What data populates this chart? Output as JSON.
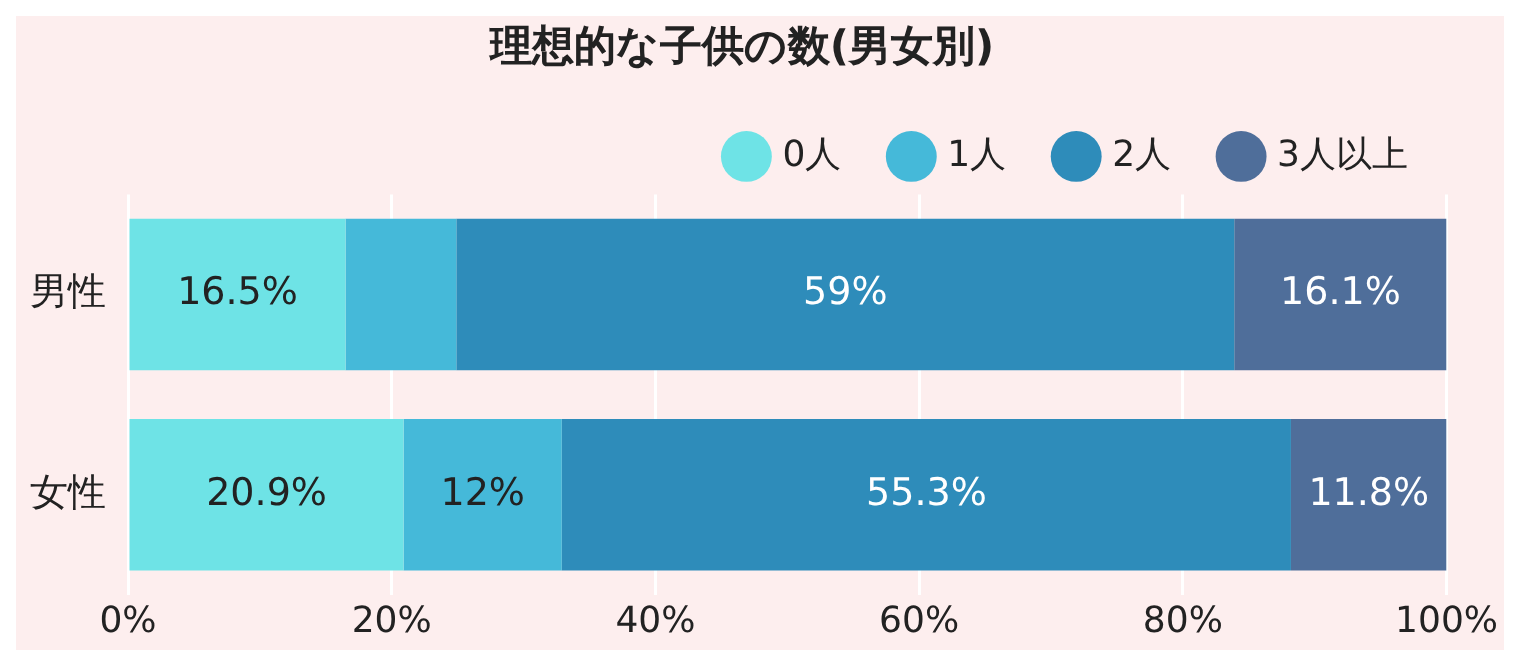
{
  "chart_data": {
    "type": "bar",
    "orientation": "horizontal",
    "stacked": true,
    "title": "理想的な子供の数(男女別)",
    "categories": [
      "男性",
      "女性"
    ],
    "series": [
      {
        "name": "0人",
        "color": "#6ee3e6",
        "values": [
          16.5,
          20.9
        ],
        "value_labels": [
          "16.5%",
          "20.9%"
        ]
      },
      {
        "name": "1人",
        "color": "#45b9d9",
        "values": [
          8.4,
          12
        ],
        "value_labels": [
          null,
          "12%"
        ]
      },
      {
        "name": "2人",
        "color": "#2e8cba",
        "values": [
          59,
          55.3
        ],
        "value_labels": [
          "59%",
          "55.3%"
        ]
      },
      {
        "name": "3人以上",
        "color": "#4f6e9a",
        "values": [
          16.1,
          11.8
        ],
        "value_labels": [
          "16.1%",
          "11.8%"
        ]
      }
    ],
    "xlim": [
      0,
      100
    ],
    "xticks": [
      {
        "value": 0,
        "label": "0%"
      },
      {
        "value": 20,
        "label": "20%"
      },
      {
        "value": 40,
        "label": "40%"
      },
      {
        "value": 60,
        "label": "60%"
      },
      {
        "value": 80,
        "label": "80%"
      },
      {
        "value": 100,
        "label": "100%"
      }
    ],
    "grid": "x",
    "legend": "top"
  }
}
